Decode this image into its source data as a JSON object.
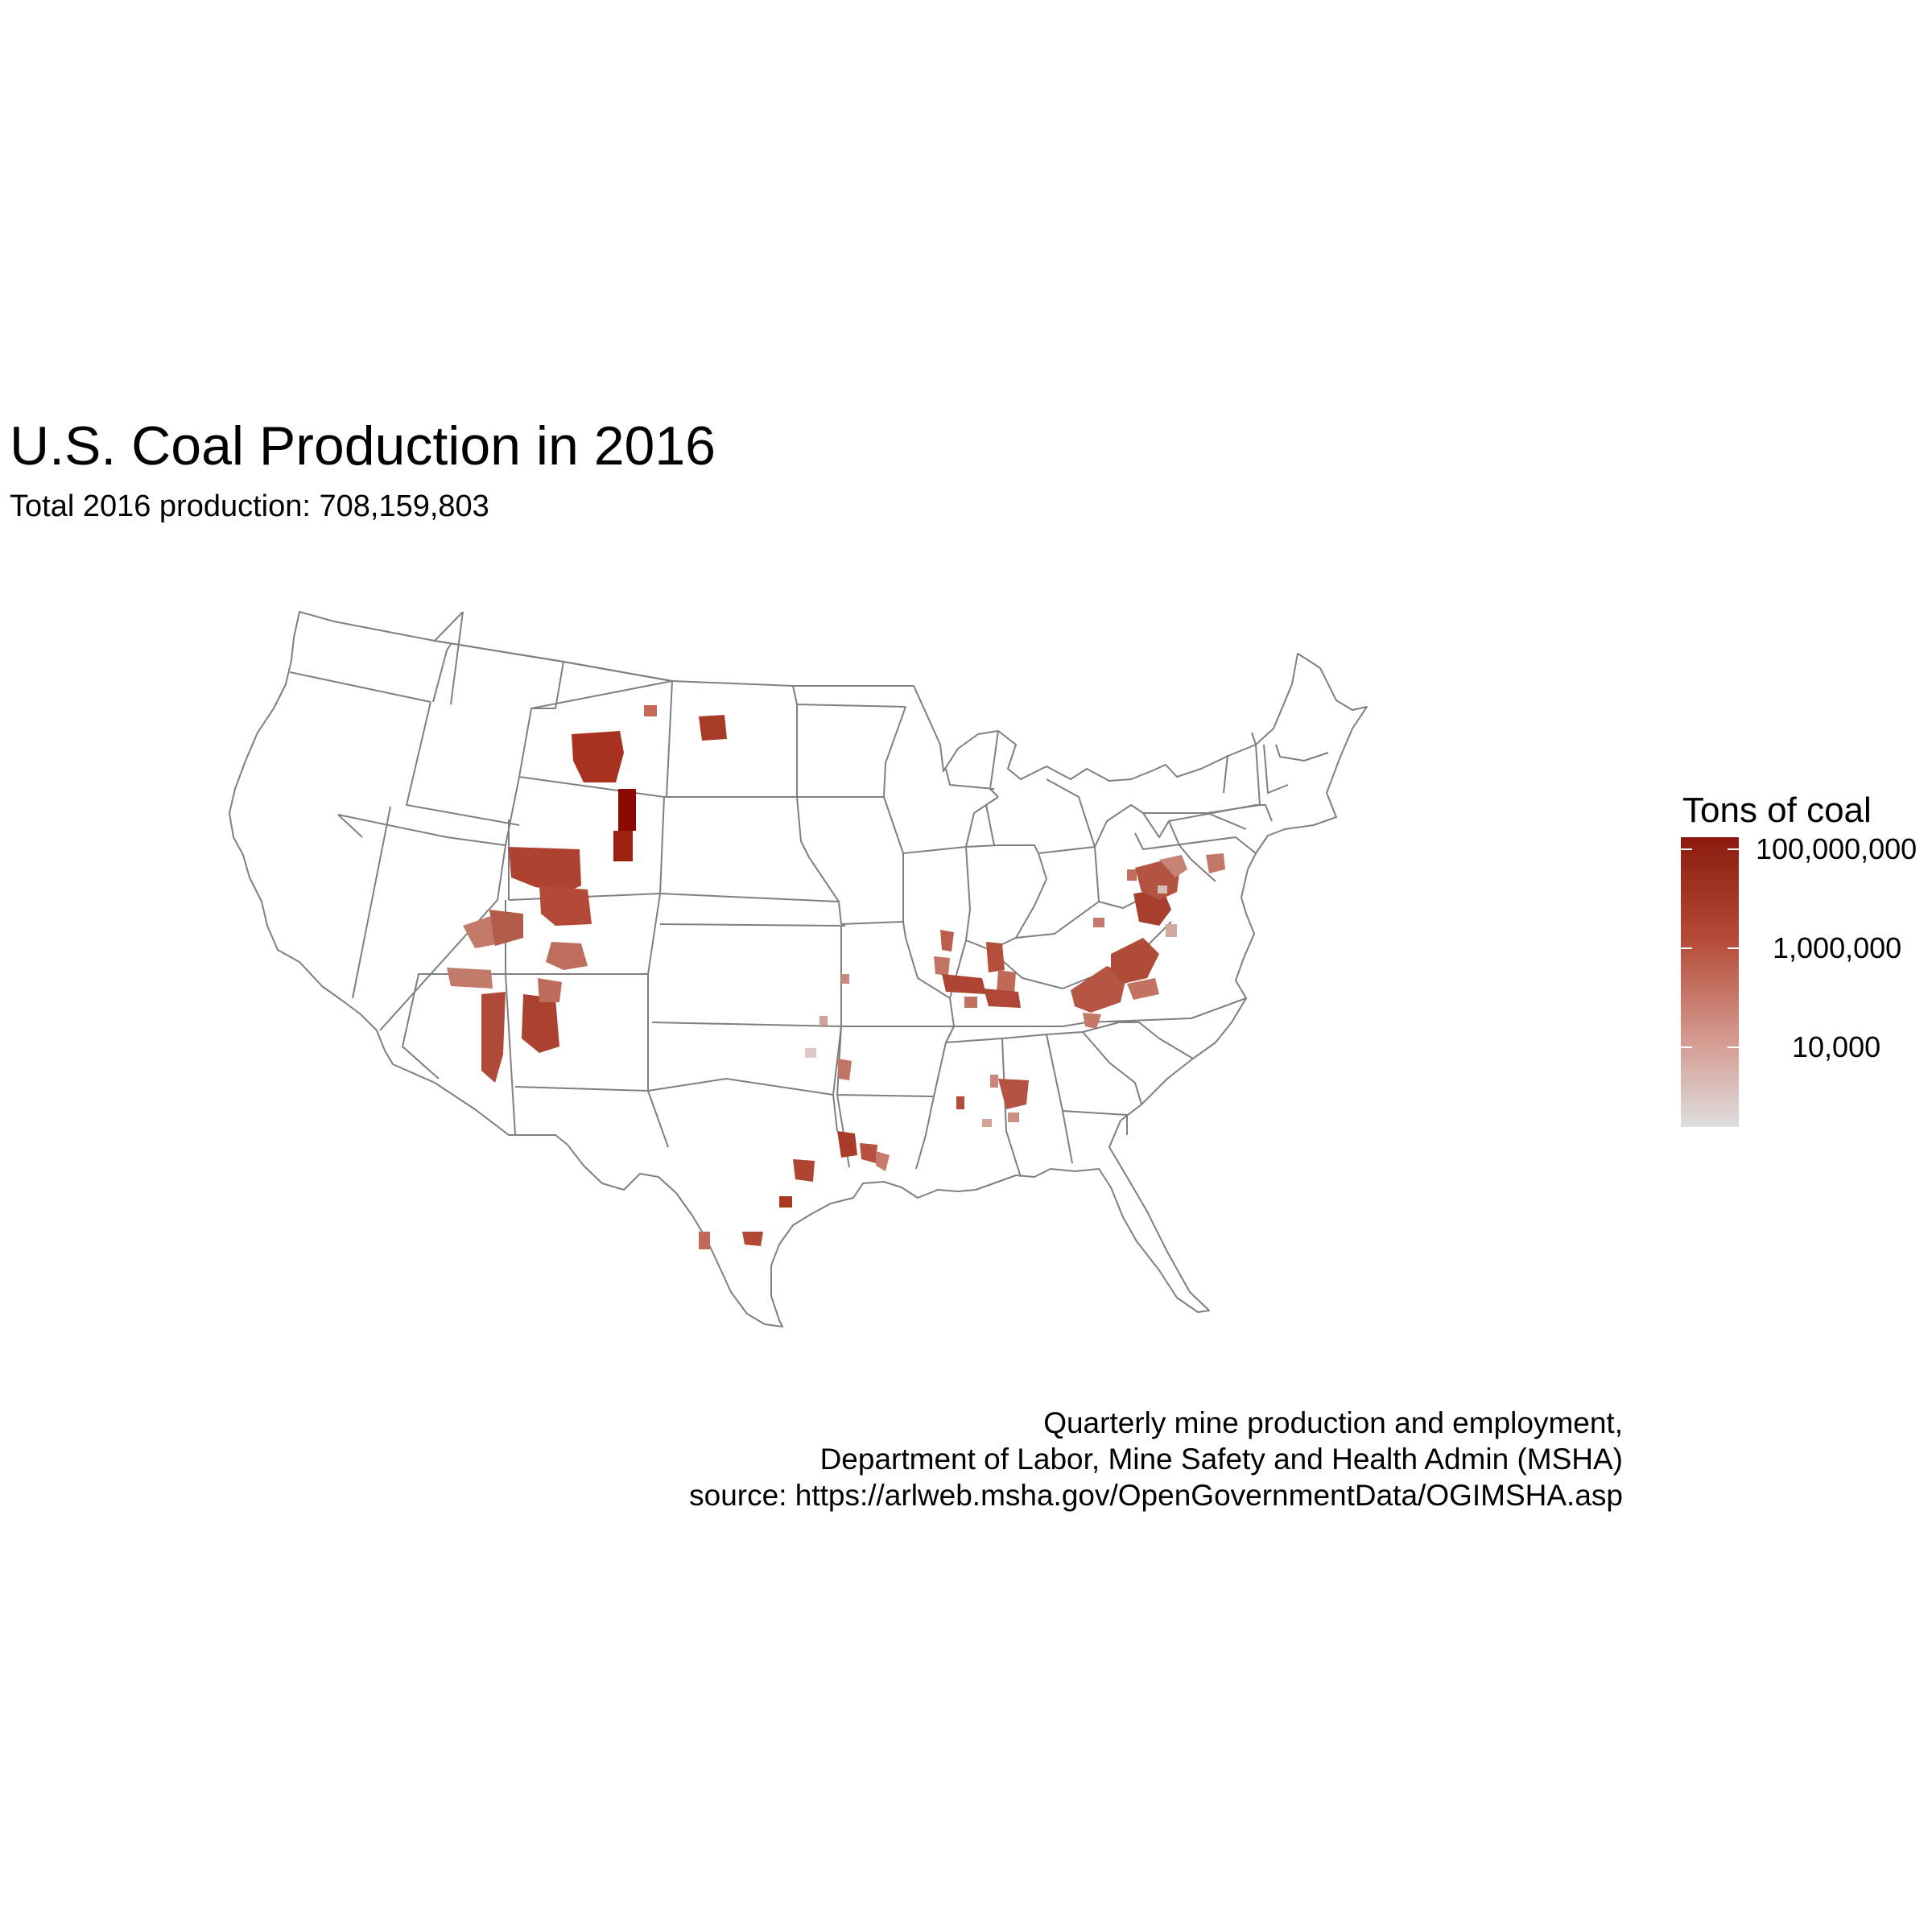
{
  "title": "U.S. Coal Production in 2016",
  "subtitle": "Total 2016 production: 708,159,803",
  "legend": {
    "title": "Tons of coal",
    "labels": [
      "100,000,000",
      "1,000,000",
      "10,000"
    ],
    "scale": "log10",
    "colors": {
      "high": "#8b1a0e",
      "mid": "#b44a36",
      "low": "#dedede"
    }
  },
  "caption": {
    "line1": "Quarterly mine production and employment,",
    "line2": "Department of Labor, Mine Safety and Health Admin (MSHA)",
    "line3": "source: https://arlweb.msha.gov/OpenGovernmentData/OGIMSHA.asp"
  },
  "map": {
    "region": "contiguous United States",
    "state_border_color": "#7f7f7f",
    "state_fill": "#ffffff"
  }
}
